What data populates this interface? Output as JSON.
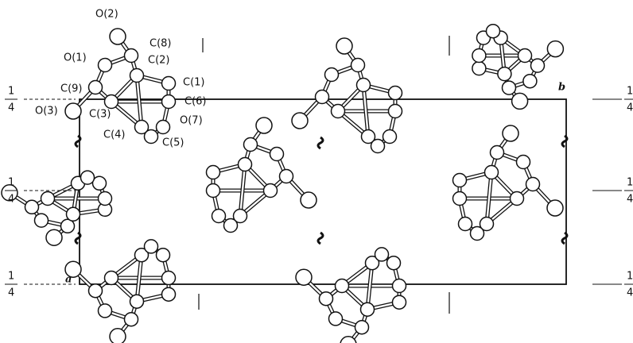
{
  "atom_labels": [
    "O(2)",
    "C(8)",
    "O(1)",
    "C(2)",
    "C(1)",
    "C(9)",
    "C(6)",
    "O(3)",
    "C(3)",
    "C(4)",
    "O(7)",
    "C(5)"
  ],
  "axes": {
    "a": "a",
    "b": "b"
  },
  "fractions": {
    "left": [
      {
        "num": "1",
        "den": "4"
      },
      {
        "num": "1",
        "den": "4"
      },
      {
        "num": "1",
        "den": "4"
      }
    ],
    "right": [
      {
        "num": "1",
        "den": "4"
      },
      {
        "num": "1",
        "den": "4"
      },
      {
        "num": "1",
        "den": "4"
      }
    ]
  }
}
